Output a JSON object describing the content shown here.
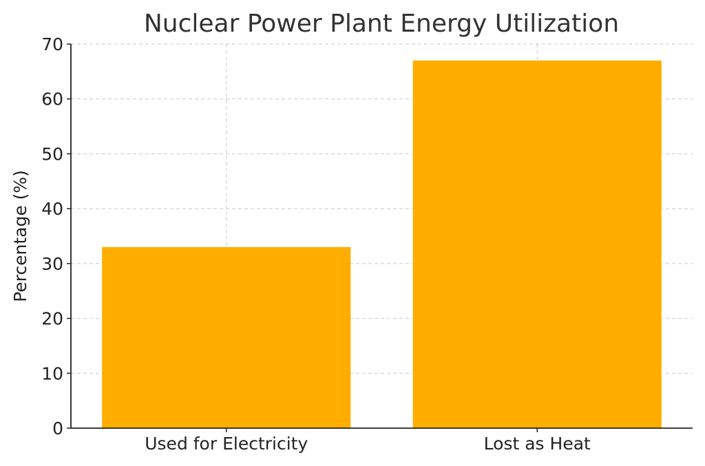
{
  "chart_data": {
    "type": "bar",
    "title": "Nuclear Power Plant Energy Utilization",
    "xlabel": "",
    "ylabel": "Percentage (%)",
    "categories": [
      "Used for Electricity",
      "Lost as Heat"
    ],
    "values": [
      33,
      67
    ],
    "ylim": [
      0,
      70
    ],
    "yticks": [
      "0",
      "10",
      "20",
      "30",
      "40",
      "50",
      "60",
      "70"
    ],
    "grid": true,
    "bar_color": "#FFAE00"
  }
}
